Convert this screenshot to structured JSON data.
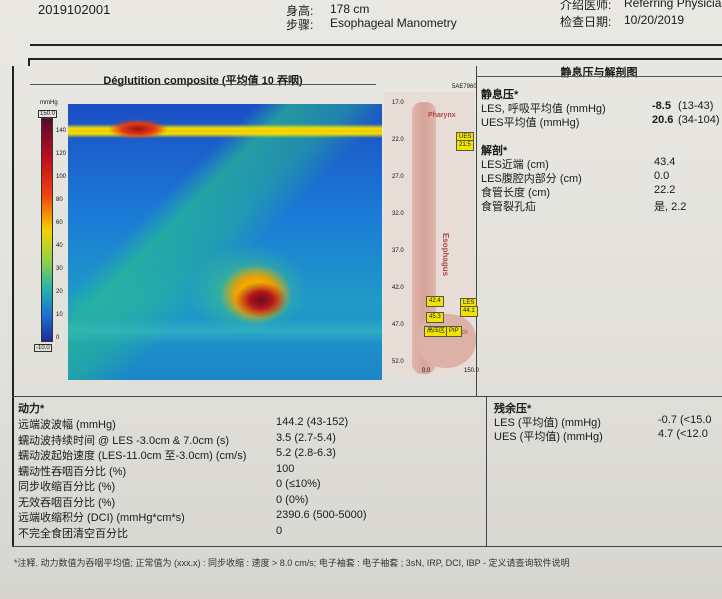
{
  "header": {
    "patient_id": "2019102001",
    "height_label": "身高:",
    "height_value": "178 cm",
    "procedure_label": "步骤:",
    "procedure_value": "Esophageal Manometry",
    "referring_label": "介绍医师:",
    "referring_value": "Referring Physician",
    "date_label": "检查日期:",
    "date_value": "10/20/2019"
  },
  "plot": {
    "title": "Déglutition composite (平均值 10 吞咽)",
    "unit": "mmHg",
    "scale_top": "150.0",
    "scale_bottom": "-10.0",
    "scale_ticks": [
      "140",
      "120",
      "100",
      "80",
      "60",
      "40",
      "30",
      "20",
      "10",
      "0"
    ]
  },
  "anatomy": {
    "title": "静息压与解剖图",
    "code": "5AE7960",
    "pharynx": "Pharynx",
    "esophagus": "Esophagus",
    "stomach": "Stomach",
    "depth_labels": [
      "17.0",
      "22.0",
      "27.0",
      "32.0",
      "37.0",
      "42.0",
      "47.0",
      "52.0"
    ],
    "ues_tag": "UES",
    "ues_val": "21.5",
    "les_tag": "LES",
    "les_val": "44.1",
    "marker_1": "42.4",
    "marker_2": "45.3",
    "marker_3": "高压区",
    "marker_4": "PIP",
    "axis_left": "0.0",
    "axis_right": "150.0"
  },
  "resting": {
    "heading": "静息压*",
    "rows": [
      {
        "label": "LES, 呼吸平均值 (mmHg)",
        "value": "-8.5",
        "range": "(13-43)"
      },
      {
        "label": "UES平均值 (mmHg)",
        "value": "20.6",
        "range": "(34-104)"
      }
    ]
  },
  "anatomy_section": {
    "heading": "解剖*",
    "rows": [
      {
        "label": "LES近端 (cm)",
        "value": "43.4"
      },
      {
        "label": "LES腹腔内部分 (cm)",
        "value": "0.0"
      },
      {
        "label": "食管长度 (cm)",
        "value": "22.2"
      },
      {
        "label": "食管裂孔疝",
        "value": "是, 2.2"
      }
    ]
  },
  "dynamics": {
    "heading": "动力*",
    "rows": [
      {
        "label": "远端波波幅 (mmHg)",
        "value": "144.2 (43-152)"
      },
      {
        "label": "蠕动波持续时间 @ LES -3.0cm & 7.0cm (s)",
        "value": "3.5 (2.7-5.4)"
      },
      {
        "label": "蠕动波起始速度 (LES-11.0cm 至-3.0cm) (cm/s)",
        "value": "5.2 (2.8-6.3)"
      },
      {
        "label": "蠕动性吞咽百分比 (%)",
        "value": "100"
      },
      {
        "label": "同步收缩百分比 (%)",
        "value": "0 (≤10%)"
      },
      {
        "label": "无效吞咽百分比 (%)",
        "value": "0 (0%)"
      },
      {
        "label": "远端收缩积分 (DCI) (mmHg*cm*s)",
        "value": "2390.6 (500-5000)"
      },
      {
        "label": "不完全食团清空百分比",
        "value": "0"
      }
    ]
  },
  "residual": {
    "heading": "残余压*",
    "rows": [
      {
        "label": "LES (平均值) (mmHg)",
        "value": "-0.7 (<15.0"
      },
      {
        "label": "UES (平均值) (mmHg)",
        "value": "4.7 (<12.0"
      }
    ]
  },
  "footnote": "*注释. 动力数值为吞咽平均值; 正常值为 (xxx.x) : 同步收缩 : 速度 > 8.0 cm/s; 电子袖套 : 电子袖套 ; 3sN, IRP, DCI, IBP - 定义请查询软件说明"
}
